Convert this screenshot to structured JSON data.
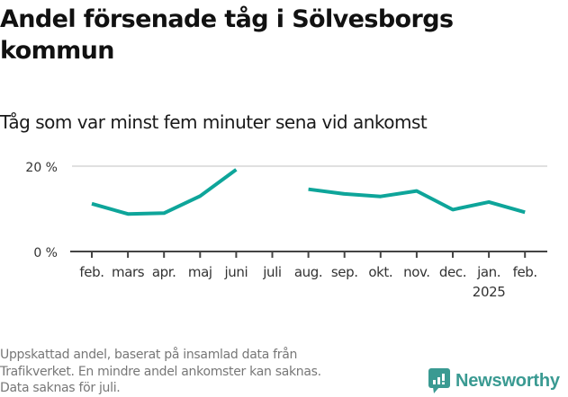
{
  "header": {
    "title": "Andel försenade tåg i Sölvesborgs kommun",
    "subtitle": "Tåg som var minst fem minuter sena vid ankomst"
  },
  "footer": {
    "note_lines": [
      "Uppskattad andel, baserat på insamlad data från",
      "Trafikverket. En mindre andel ankomster kan saknas.",
      "Data saknas för juli."
    ],
    "logo_text": "Newsworthy",
    "logo_icon": "bar-chart-speech-bubble-icon"
  },
  "colors": {
    "line": "#0ea59a",
    "grid": "#e0e0e0",
    "axis": "#444444",
    "logo": "#3a9a92"
  },
  "chart_data": {
    "type": "line",
    "title": "Andel försenade tåg i Sölvesborgs kommun",
    "subtitle": "Tåg som var minst fem minuter sena vid ankomst",
    "xlabel": "",
    "ylabel": "",
    "ylim": [
      0,
      20
    ],
    "y_ticks": [
      "0 %",
      "20 %"
    ],
    "grid": true,
    "legend": "none",
    "categories": [
      "feb.",
      "mars",
      "apr.",
      "maj",
      "juni",
      "juli",
      "aug.",
      "sep.",
      "okt.",
      "nov.",
      "dec.",
      "jan.",
      "feb."
    ],
    "x_sublabels": {
      "11": "2025"
    },
    "series": [
      {
        "name": "Andel försenade tåg",
        "unit": "%",
        "values": [
          11.2,
          8.8,
          9.0,
          13.0,
          19.2,
          null,
          14.6,
          13.5,
          12.9,
          14.2,
          9.8,
          11.6,
          9.2
        ]
      }
    ],
    "annotations": [
      "Data saknas för juli."
    ]
  }
}
